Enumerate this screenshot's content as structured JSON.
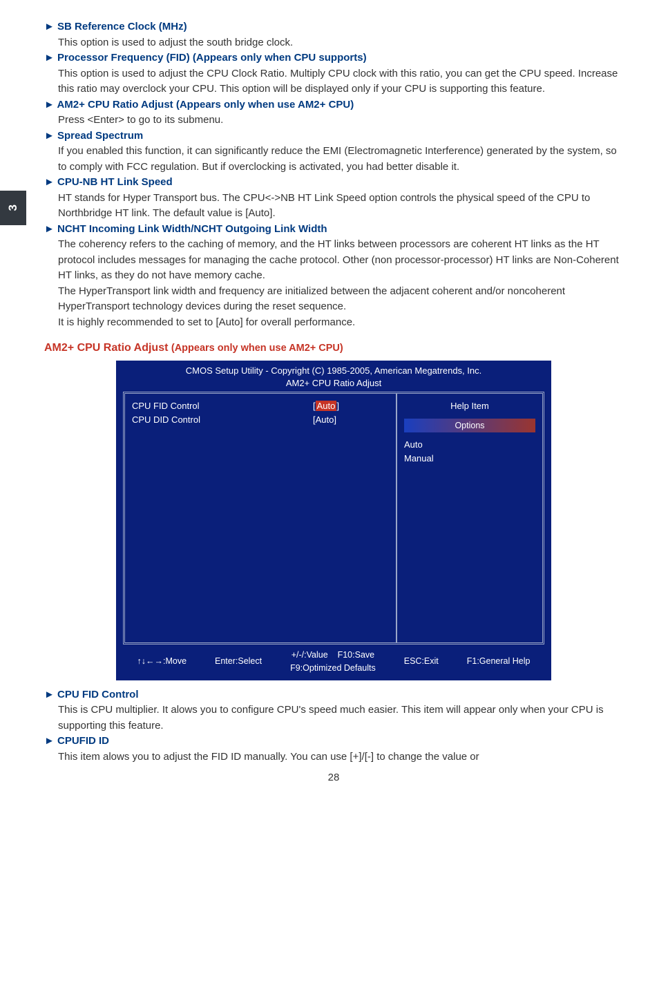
{
  "sideTab": "3",
  "sections": {
    "sb_ref": {
      "heading": "► SB Reference Clock (MHz)",
      "body": "This option is used to adjust the south bridge clock."
    },
    "proc_freq": {
      "heading": "► Processor Frequency (FID)  (Appears only when CPU supports)",
      "body": "This option is used to adjust the CPU Clock Ratio. Multiply CPU clock with this ratio, you can get the CPU speed. Increase this ratio may overclock your CPU. This option will be displayed only if your CPU is supporting this feature."
    },
    "am2_ratio": {
      "heading": "► AM2+ CPU Ratio Adjust (Appears only when use AM2+ CPU)",
      "body": "Press <Enter> to go to its submenu."
    },
    "spread": {
      "heading": "► Spread Spectrum",
      "body": "If you enabled this function, it can significantly reduce the EMI (Electromagnetic Interference) generated by the system, so to comply with FCC regulation. But if overclocking is activated, you had better disable it."
    },
    "cpu_nb": {
      "heading": "► CPU-NB HT Link Speed",
      "body": "HT stands for Hyper Transport bus. The CPU<->NB HT Link Speed option controls the physical speed of the CPU to Northbridge HT link. The default value is [Auto]."
    },
    "ncht": {
      "heading": "► NCHT Incoming Link Width/NCHT Outgoing Link Width",
      "body1": "The coherency refers to the caching of memory, and the HT links between processors are coherent HT links as the HT protocol includes messages for managing the cache protocol. Other (non processor-processor) HT links are Non-Coherent HT links, as they do not have memory cache.",
      "body2": "The HyperTransport link width and frequency are initialized between the adjacent coherent and/or noncoherent HyperTransport technology devices during the reset sequence.",
      "body3": "It is highly recommended to set to [Auto] for overall performance."
    },
    "cpu_fid_ctrl": {
      "heading": "► CPU FID Control",
      "body": "This is CPU multiplier. It alows you to configure CPU's speed much easier. This item will appear only when your CPU is supporting this feature."
    },
    "cpufid_id": {
      "heading": "► CPUFID ID",
      "body": "This item alows you to adjust the FID ID manually. You can use [+]/[-] to change the value or"
    }
  },
  "bigTitle": {
    "main": "AM2+ CPU Ratio Adjust",
    "sub": "(Appears only when use AM2+ CPU)"
  },
  "bios": {
    "title1": "CMOS Setup Utility - Copyright (C) 1985-2005, American Megatrends, Inc.",
    "title2": "AM2+ CPU Ratio Adjust",
    "row1_label": "CPU FID Control",
    "row1_value_l": "[",
    "row1_value_mid": "Auto",
    "row1_value_r": "]",
    "row2_label": "CPU DID Control",
    "row2_value": "[Auto]",
    "help": "Help Item",
    "options": "Options",
    "opt1": "Auto",
    "opt2": "Manual",
    "footer_move": "↑↓←→:Move",
    "footer_enter": "Enter:Select",
    "footer_val": "+/-/:Value",
    "footer_f10": "F10:Save",
    "footer_f9": "F9:Optimized Defaults",
    "footer_esc": "ESC:Exit",
    "footer_f1": "F1:General Help",
    "colors": {
      "bg": "#0a1f7a",
      "border": "#9aa6c8",
      "highlight": "#c63426"
    }
  },
  "pageNum": "28"
}
